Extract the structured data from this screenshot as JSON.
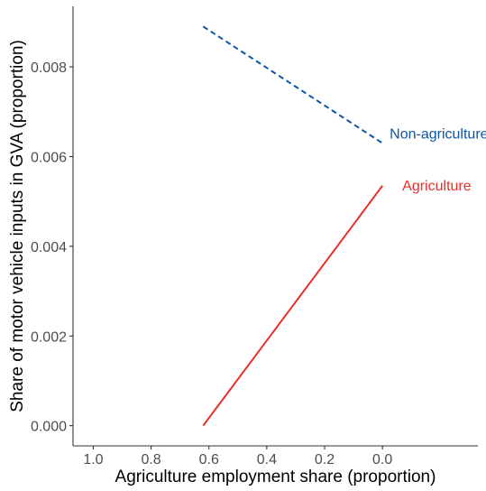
{
  "chart_data": {
    "type": "line",
    "title": "",
    "xlabel": "Agriculture employment share (proportion)",
    "ylabel": "Share of motor vehicle inputs in GVA (proportion)",
    "x_reversed": true,
    "xlim": [
      1.07,
      -0.33
    ],
    "ylim": [
      -0.00045,
      0.00935
    ],
    "x_ticks": [
      1.0,
      0.8,
      0.6,
      0.4,
      0.2,
      0.0
    ],
    "x_tick_labels": [
      "1.0",
      "0.8",
      "0.6",
      "0.4",
      "0.2",
      "0.0"
    ],
    "y_ticks": [
      0.0,
      0.002,
      0.004,
      0.006,
      0.008
    ],
    "y_tick_labels": [
      "0.000",
      "0.002",
      "0.004",
      "0.006",
      "0.008"
    ],
    "grid": false,
    "legend": "direct labels at line ends",
    "series": [
      {
        "name": "Non-agriculture",
        "color": "#0b57a4",
        "line_style": "dashed",
        "x": [
          0.62,
          0.0
        ],
        "y": [
          0.0089,
          0.0063
        ]
      },
      {
        "name": "Agriculture",
        "color": "#e8302a",
        "line_style": "solid",
        "x": [
          0.62,
          0.0
        ],
        "y": [
          0.0,
          0.00535
        ]
      }
    ]
  }
}
